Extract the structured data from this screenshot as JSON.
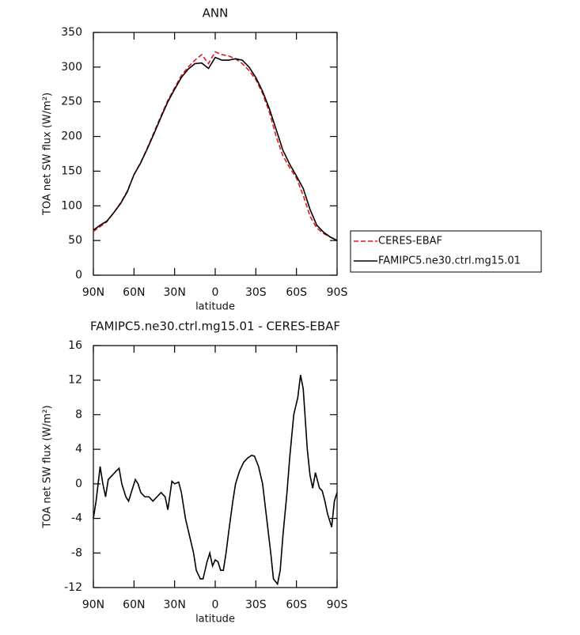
{
  "chart_data": [
    {
      "type": "line",
      "title": "ANN",
      "xlabel": "latitude",
      "ylabel": "TOA net SW flux (W/m²)",
      "x": [
        90,
        85,
        80,
        75,
        70,
        65,
        60,
        55,
        50,
        45,
        40,
        35,
        30,
        25,
        20,
        15,
        10,
        5,
        0,
        -5,
        -10,
        -15,
        -20,
        -25,
        -30,
        -35,
        -40,
        -45,
        -50,
        -55,
        -60,
        -65,
        -70,
        -75,
        -80,
        -85,
        -90
      ],
      "series": [
        {
          "name": "CERES-EBAF",
          "color": "#e0191c",
          "dashed": true,
          "values": [
            63,
            70,
            77,
            90,
            104,
            121,
            145,
            163,
            184,
            207,
            230,
            252,
            270,
            288,
            300,
            310,
            318,
            305,
            322,
            318,
            316,
            312,
            305,
            295,
            282,
            262,
            235,
            200,
            172,
            155,
            140,
            115,
            85,
            68,
            60,
            55,
            50
          ]
        },
        {
          "name": "FAMIPC5.ne30.ctrl.mg15.01",
          "color": "#000000",
          "dashed": false,
          "values": [
            65,
            72,
            78,
            90,
            103,
            120,
            145,
            162,
            183,
            205,
            228,
            250,
            268,
            285,
            297,
            305,
            306,
            298,
            314,
            310,
            310,
            312,
            310,
            300,
            285,
            265,
            240,
            210,
            180,
            160,
            143,
            125,
            95,
            72,
            62,
            55,
            50
          ]
        }
      ],
      "xlim": [
        90,
        -90
      ],
      "xticks": [
        {
          "value": 90,
          "label": "90N"
        },
        {
          "value": 60,
          "label": "60N"
        },
        {
          "value": 30,
          "label": "30N"
        },
        0,
        {
          "value": -30,
          "label": "30S"
        },
        {
          "value": -60,
          "label": "60S"
        },
        {
          "value": -90,
          "label": "90S"
        }
      ],
      "ylim": [
        0,
        350
      ],
      "yticks": [
        0,
        50,
        100,
        150,
        200,
        250,
        300,
        350
      ],
      "legend": "right"
    },
    {
      "type": "line",
      "title": "FAMIPC5.ne30.ctrl.mg15.01 - CERES-EBAF",
      "xlabel": "latitude",
      "ylabel": "TOA net SW flux (W/m²)",
      "x": [
        90,
        88,
        85,
        83,
        81,
        79,
        76,
        73,
        71,
        69,
        66,
        64,
        62,
        59,
        57,
        55,
        52,
        49,
        46,
        43,
        40,
        37,
        35,
        32,
        30,
        27,
        25,
        22,
        19,
        16,
        14,
        11,
        9,
        6,
        4,
        2,
        0,
        -2,
        -4,
        -6,
        -8,
        -10,
        -13,
        -15,
        -18,
        -21,
        -24,
        -27,
        -29,
        -32,
        -35,
        -38,
        -41,
        -43,
        -46,
        -48,
        -50,
        -53,
        -55,
        -58,
        -61,
        -63,
        -65,
        -68,
        -70,
        -72,
        -74,
        -77,
        -79,
        -81,
        -83,
        -86,
        -88,
        -90
      ],
      "series": [
        {
          "name": "FAMIPC5.ne30.ctrl.mg15.01",
          "color": "#000000",
          "dashed": false,
          "values": [
            -4,
            -2,
            2,
            0,
            -1.5,
            0.5,
            1,
            1.5,
            1.8,
            0,
            -1.5,
            -2,
            -1,
            0.5,
            0,
            -1,
            -1.5,
            -1.5,
            -2,
            -1.5,
            -1,
            -1.5,
            -3,
            0.3,
            0,
            0.2,
            -1,
            -4,
            -6,
            -8,
            -10,
            -11,
            -11,
            -9,
            -8,
            -9.5,
            -8.8,
            -9,
            -10,
            -10,
            -8,
            -5.5,
            -2,
            0,
            1.5,
            2.5,
            3,
            3.3,
            3.2,
            2,
            0,
            -4,
            -8,
            -11,
            -11.6,
            -10,
            -6,
            -1,
            3,
            8,
            10,
            12.6,
            11,
            4,
            1,
            -0.5,
            1.3,
            -0.5,
            -0.8,
            -2,
            -3.5,
            -5,
            -2,
            -1
          ]
        }
      ],
      "xlim": [
        90,
        -90
      ],
      "xticks": [
        {
          "value": 90,
          "label": "90N"
        },
        {
          "value": 60,
          "label": "60N"
        },
        {
          "value": 30,
          "label": "30N"
        },
        0,
        {
          "value": -30,
          "label": "30S"
        },
        {
          "value": -60,
          "label": "60S"
        },
        {
          "value": -90,
          "label": "90S"
        }
      ],
      "ylim": [
        -12,
        16
      ],
      "yticks": [
        -12,
        -8,
        -4,
        0,
        4,
        8,
        12,
        16
      ]
    }
  ]
}
